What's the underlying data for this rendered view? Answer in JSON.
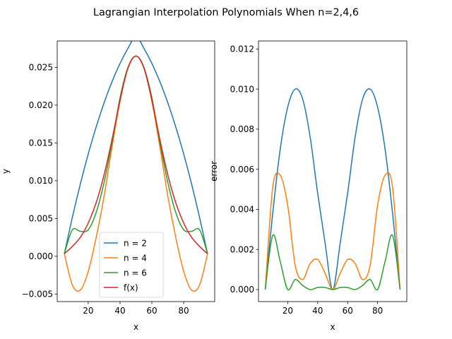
{
  "figure": {
    "title": "Lagrangian Interpolation Polynomials When n=2,4,6"
  },
  "chart_data": [
    {
      "type": "line",
      "xlabel": "x",
      "ylabel": "y",
      "xlim": [
        0.5,
        99.5
      ],
      "ylim": [
        -0.006,
        0.0285
      ],
      "xticks": [
        20,
        40,
        60,
        80
      ],
      "yticks": [
        -0.005,
        0.0,
        0.005,
        0.01,
        0.015,
        0.02,
        0.025
      ],
      "ytick_labels": [
        "−0.005",
        "0.000",
        "0.005",
        "0.010",
        "0.015",
        "0.020",
        "0.025"
      ],
      "legend_position": "lower-center",
      "x": [
        5,
        10,
        15,
        20,
        25,
        30,
        35,
        40,
        45,
        50,
        55,
        60,
        65,
        70,
        75,
        80,
        85,
        90,
        95
      ],
      "series": [
        {
          "name": "n = 2",
          "color": "#1f77b4",
          "values": [
            0.00033,
            0.00513,
            0.00953,
            0.01353,
            0.01713,
            0.02033,
            0.02313,
            0.02553,
            0.02753,
            0.02913,
            0.02753,
            0.02553,
            0.02313,
            0.02033,
            0.01713,
            0.01353,
            0.00953,
            0.00513,
            0.00033
          ]
        },
        {
          "name": "n = 4",
          "color": "#ff7f0e",
          "values": [
            0.00033,
            -0.0038,
            -0.0045,
            -0.002,
            0.0025,
            0.008,
            0.0145,
            0.0205,
            0.025,
            0.0265,
            0.025,
            0.0205,
            0.0145,
            0.008,
            0.0025,
            -0.002,
            -0.0045,
            -0.0038,
            0.00033
          ]
        },
        {
          "name": "n = 6",
          "color": "#2ca02c",
          "values": [
            0.00033,
            0.0035,
            0.0033,
            0.0035,
            0.0058,
            0.0098,
            0.0151,
            0.021,
            0.025,
            0.0265,
            0.025,
            0.021,
            0.0151,
            0.0098,
            0.0058,
            0.0035,
            0.0033,
            0.0035,
            0.00033
          ]
        },
        {
          "name": "f(x)",
          "color": "#d62728",
          "values": [
            0.00033,
            0.0013,
            0.0025,
            0.0044,
            0.0071,
            0.0108,
            0.0155,
            0.0207,
            0.0249,
            0.0265,
            0.0249,
            0.0207,
            0.0155,
            0.0108,
            0.0071,
            0.0044,
            0.0025,
            0.0013,
            0.00033
          ]
        }
      ]
    },
    {
      "type": "line",
      "xlabel": "x",
      "ylabel": "error",
      "xlim": [
        0.5,
        99.5
      ],
      "ylim": [
        -0.0006,
        0.0124
      ],
      "xticks": [
        20,
        40,
        60,
        80
      ],
      "yticks": [
        0.0,
        0.002,
        0.004,
        0.006,
        0.008,
        0.01,
        0.012
      ],
      "ytick_labels": [
        "0.000",
        "0.002",
        "0.004",
        "0.006",
        "0.008",
        "0.010",
        "0.012"
      ],
      "x": [
        5,
        10,
        15,
        20,
        25,
        30,
        35,
        40,
        45,
        50,
        55,
        60,
        65,
        70,
        75,
        80,
        85,
        90,
        95
      ],
      "series": [
        {
          "name": "n = 2",
          "color": "#1f77b4",
          "values": [
            0.0,
            0.0038,
            0.007,
            0.0091,
            0.01,
            0.0095,
            0.0076,
            0.0048,
            0.0023,
            0.0,
            0.0023,
            0.0048,
            0.0076,
            0.0095,
            0.01,
            0.0091,
            0.007,
            0.0038,
            0.0
          ]
        },
        {
          "name": "n = 4",
          "color": "#ff7f0e",
          "values": [
            0.0,
            0.0051,
            0.0057,
            0.0042,
            0.0012,
            0.0005,
            0.0013,
            0.0015,
            0.0008,
            0.0,
            0.0008,
            0.0015,
            0.0013,
            0.0005,
            0.0012,
            0.0042,
            0.0057,
            0.0051,
            0.0
          ]
        },
        {
          "name": "n = 6",
          "color": "#2ca02c",
          "values": [
            0.0,
            0.0027,
            0.0014,
            0.0,
            0.0005,
            0.0002,
            0.0,
            0.0001,
            0.0001,
            0.0,
            0.0001,
            0.0001,
            0.0,
            0.0002,
            0.0005,
            0.0,
            0.0014,
            0.0027,
            0.0
          ]
        }
      ]
    }
  ]
}
